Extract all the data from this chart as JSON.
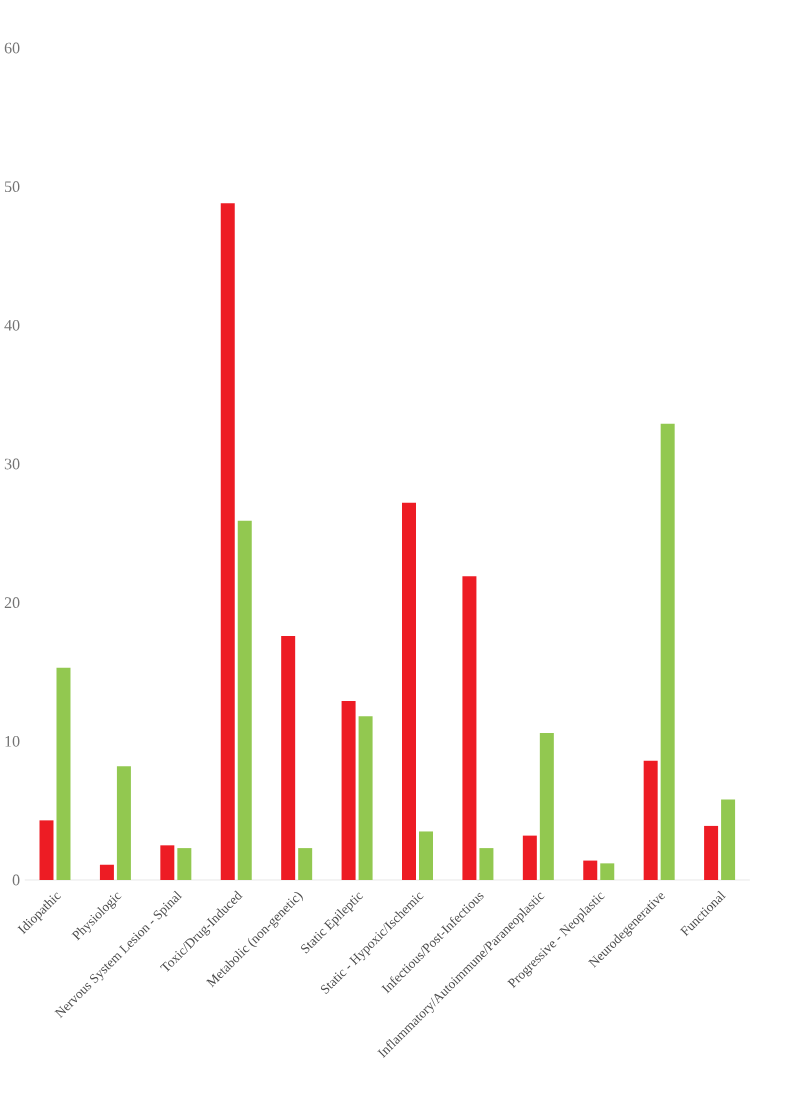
{
  "chart_data": {
    "type": "bar",
    "categories": [
      "Idiopathic",
      "Physiologic",
      "Nervous System Lesion - Spinal",
      "Toxic/Drug-Induced",
      "Metabolic (non-genetic)",
      "Static Epileptic",
      "Static - Hypoxic/Ischemic",
      "Infectious/Post-Infectious",
      "Inflammatory/Autoimmune/Paraneoplastic",
      "Progressive - Neoplastic",
      "Neurodegenerative",
      "Functional"
    ],
    "series": [
      {
        "color": "#ed1c24",
        "values": [
          4.3,
          1.1,
          2.5,
          48.8,
          17.6,
          12.9,
          27.2,
          21.9,
          3.2,
          1.4,
          8.6,
          3.9
        ]
      },
      {
        "color": "#92c850",
        "values": [
          15.3,
          8.2,
          2.3,
          25.9,
          2.3,
          11.8,
          3.5,
          2.3,
          10.6,
          1.2,
          32.9,
          5.8
        ]
      }
    ],
    "ylim": [
      0,
      60
    ],
    "yticks": [
      0,
      10,
      20,
      30,
      40,
      50,
      60
    ],
    "grid": false
  }
}
